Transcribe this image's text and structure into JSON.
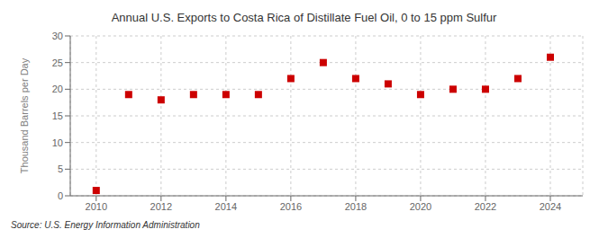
{
  "chart_data": {
    "type": "scatter",
    "title": "Annual U.S. Exports to Costa Rica of Distillate Fuel Oil, 0 to 15 ppm Sulfur",
    "ylabel": "Thousand Barrels per Day",
    "source": "Source: U.S. Energy Information Administration",
    "x": [
      2010,
      2011,
      2012,
      2013,
      2014,
      2015,
      2016,
      2017,
      2018,
      2019,
      2020,
      2021,
      2022,
      2023,
      2024
    ],
    "values": [
      1,
      19,
      18,
      19,
      19,
      19,
      22,
      25,
      22,
      21,
      19,
      20,
      20,
      22,
      26
    ],
    "color": "#cc0000",
    "marker": "square",
    "xlim": [
      2009.2,
      2025.0
    ],
    "ylim": [
      0,
      30
    ],
    "xticks": [
      2010,
      2012,
      2014,
      2016,
      2018,
      2020,
      2022,
      2024
    ],
    "yticks": [
      0,
      5,
      10,
      15,
      20,
      25,
      30
    ],
    "grid": true
  }
}
